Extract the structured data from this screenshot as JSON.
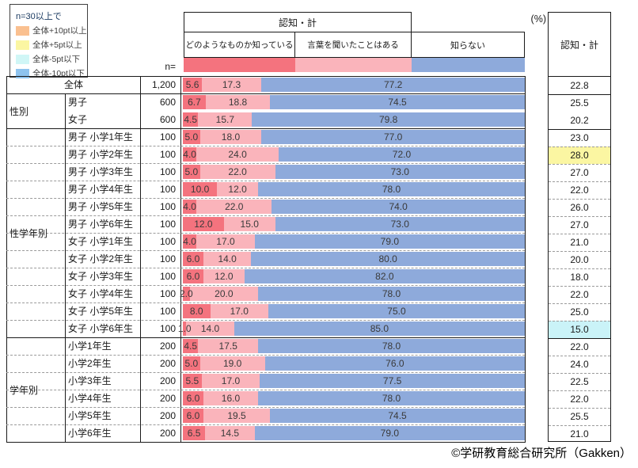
{
  "legend": {
    "title": "n=30以上で",
    "items": [
      {
        "label": "全体+10pt以上"
      },
      {
        "label": "全体+5pt以上"
      },
      {
        "label": "全体-5pt以下"
      },
      {
        "label": "全体-10pt以下"
      }
    ]
  },
  "header": {
    "span_label": "認知・計",
    "n_label": "n=",
    "percent_label": "(%)",
    "total_label": "認知・計"
  },
  "colors": {
    "series": [
      "#F4737E",
      "#FAB4BB",
      "#8EAADB"
    ],
    "highlights": {
      "plus5": "#FBF6A2",
      "minus5": "#CAF3F8"
    },
    "legend_swatches": [
      "#FAC090",
      "#FBF6A2",
      "#D0F6F6",
      "#8EC3EE"
    ]
  },
  "chart_data": {
    "type": "bar",
    "stacked": true,
    "orientation": "horizontal",
    "unit": "%",
    "xlim": [
      0,
      100
    ],
    "title": "認知・計",
    "legend_position": "top",
    "categories": [
      "全体",
      "男子",
      "女子",
      "男子 小学1年生",
      "男子 小学2年生",
      "男子 小学3年生",
      "男子 小学4年生",
      "男子 小学5年生",
      "男子 小学6年生",
      "女子 小学1年生",
      "女子 小学2年生",
      "女子 小学3年生",
      "女子 小学4年生",
      "女子 小学5年生",
      "女子 小学6年生",
      "小学1年生",
      "小学2年生",
      "小学3年生",
      "小学4年生",
      "小学5年生",
      "小学6年生"
    ],
    "n": [
      1200,
      600,
      600,
      100,
      100,
      100,
      100,
      100,
      100,
      100,
      100,
      100,
      100,
      100,
      100,
      200,
      200,
      200,
      200,
      200,
      200
    ],
    "series": [
      {
        "key": "known",
        "name": "どのようなものか知っている",
        "values": [
          5.6,
          6.7,
          4.5,
          5.0,
          4.0,
          5.0,
          10.0,
          4.0,
          12.0,
          4.0,
          6.0,
          6.0,
          2.0,
          8.0,
          1.0,
          4.5,
          5.0,
          5.5,
          6.0,
          6.0,
          6.5
        ]
      },
      {
        "key": "heard",
        "name": "言葉を聞いたことはある",
        "values": [
          17.3,
          18.8,
          15.7,
          18.0,
          24.0,
          22.0,
          12.0,
          22.0,
          15.0,
          17.0,
          14.0,
          12.0,
          20.0,
          17.0,
          14.0,
          17.5,
          19.0,
          17.0,
          16.0,
          19.5,
          14.5
        ]
      },
      {
        "key": "unknown",
        "name": "知らない",
        "values": [
          77.2,
          74.5,
          79.8,
          77.0,
          72.0,
          73.0,
          78.0,
          74.0,
          73.0,
          79.0,
          80.0,
          82.0,
          78.0,
          75.0,
          85.0,
          78.0,
          76.0,
          77.5,
          78.0,
          74.5,
          79.0
        ]
      }
    ],
    "totals": {
      "name": "認知・計",
      "values": [
        22.8,
        25.5,
        20.2,
        23.0,
        28.0,
        27.0,
        22.0,
        26.0,
        27.0,
        21.0,
        20.0,
        18.0,
        22.0,
        25.0,
        15.0,
        22.0,
        24.0,
        22.5,
        22.0,
        25.5,
        21.0
      ]
    }
  },
  "table": {
    "merged_rows": [
      0
    ],
    "groups": [
      {
        "label": "性別",
        "start": 1,
        "span": 2
      },
      {
        "label": "性学年別",
        "start": 3,
        "span": 12
      },
      {
        "label": "学年別",
        "start": 15,
        "span": 6
      }
    ],
    "n_display": [
      "1,200",
      "600",
      "600",
      "100",
      "100",
      "100",
      "100",
      "100",
      "100",
      "100",
      "100",
      "100",
      "100",
      "100",
      "100",
      "200",
      "200",
      "200",
      "200",
      "200",
      "200"
    ],
    "separators": [
      "none",
      "solid",
      "none",
      "solid",
      "dashed",
      "dashed",
      "dashed",
      "dashed",
      "dashed",
      "dashed",
      "dashed",
      "dashed",
      "dashed",
      "dashed",
      "dashed",
      "solid",
      "dashed",
      "dashed",
      "dashed",
      "dashed",
      "dashed"
    ],
    "highlights": {
      "4": "plus5",
      "14": "minus5"
    }
  },
  "footer": {
    "copyright": "©学研教育総合研究所（Gakken）"
  }
}
